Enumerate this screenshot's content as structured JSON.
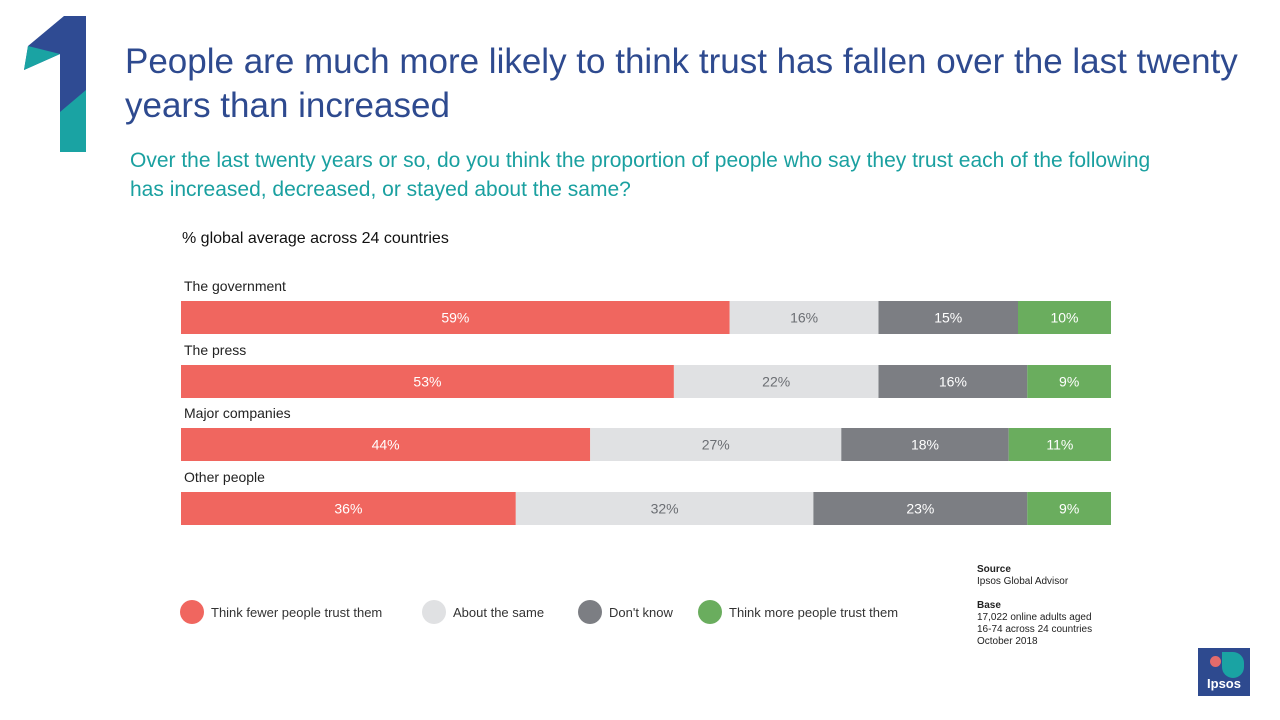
{
  "header": {
    "number": "1",
    "title": "People are much more likely to think trust has fallen over the last twenty years than increased",
    "question": "Over the last twenty years or so, do you think the proportion of people who say they trust each of the following has increased, decreased, or stayed about the same?",
    "subtitle": "% global average across 24 countries"
  },
  "colors": {
    "fewer": "#f0665f",
    "same": "#e0e1e3",
    "dont_know": "#7c7e83",
    "more": "#6aad5e",
    "title": "#2e4a8f",
    "accent": "#1aa0a0"
  },
  "chart_data": {
    "type": "bar",
    "orientation": "horizontal",
    "stacked": true,
    "percent": true,
    "categories": [
      "The government",
      "The press",
      "Major companies",
      "Other people"
    ],
    "series": [
      {
        "name": "Think fewer people trust them",
        "values": [
          59,
          53,
          44,
          36
        ]
      },
      {
        "name": "About the same",
        "values": [
          16,
          22,
          27,
          32
        ]
      },
      {
        "name": "Don't know",
        "values": [
          15,
          16,
          18,
          23
        ]
      },
      {
        "name": "Think more people trust them",
        "values": [
          10,
          9,
          11,
          9
        ]
      }
    ],
    "legend_position": "bottom"
  },
  "notes": {
    "source_heading": "Source",
    "source": "Ipsos Global Advisor",
    "base_heading": "Base",
    "base_lines": [
      "17,022 online adults aged",
      "16-74 across 24 countries",
      "October 2018"
    ]
  },
  "logo": {
    "text": "Ipsos"
  }
}
